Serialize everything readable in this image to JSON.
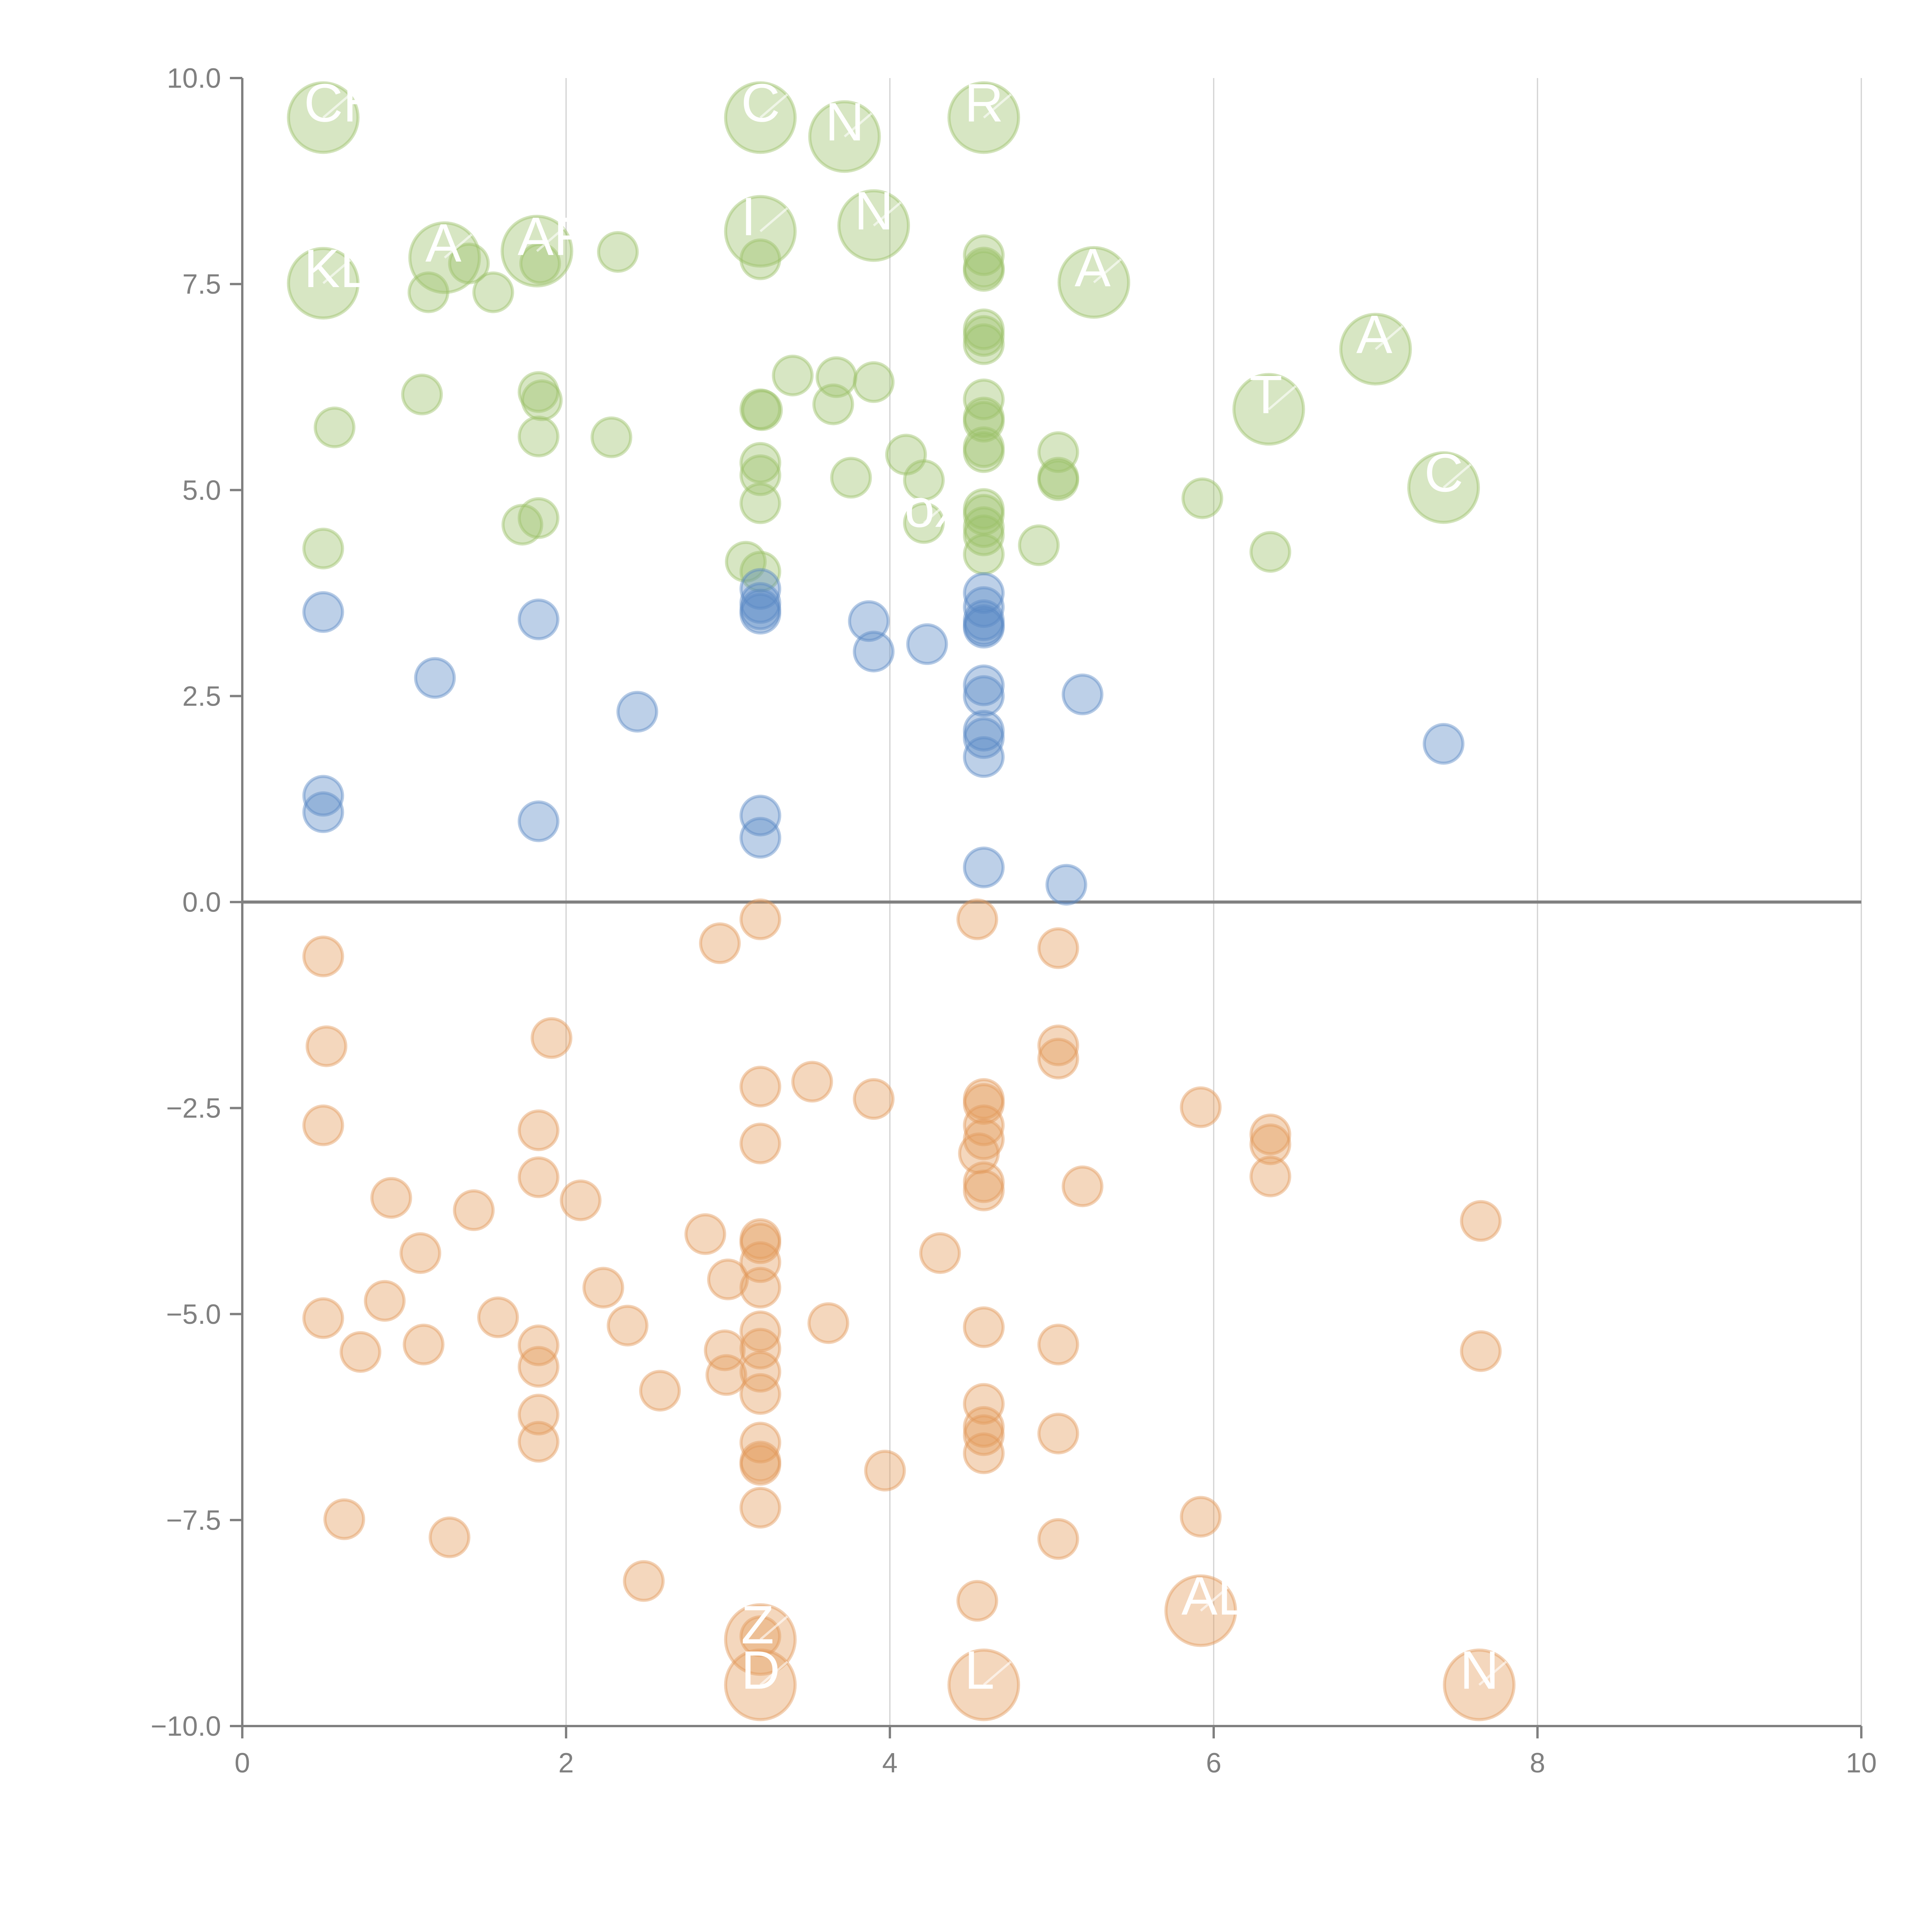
{
  "chart_data": {
    "type": "scatter",
    "title": "",
    "xlabel": "",
    "ylabel": "",
    "xlim": [
      0,
      10
    ],
    "ylim": [
      -10,
      10
    ],
    "x_ticks": [
      "0",
      "2",
      "4",
      "6",
      "8",
      "10"
    ],
    "x_tick_values": [
      0,
      2,
      4,
      6,
      8,
      10
    ],
    "y_ticks": [
      "10.0",
      "7.5",
      "5.0",
      "2.5",
      "0.0",
      "−2.5",
      "−5.0",
      "−7.5",
      "−10.0"
    ],
    "y_tick_values": [
      10,
      7.5,
      5,
      2.5,
      0,
      -2.5,
      -5,
      -7.5,
      -10
    ],
    "grid": "vertical",
    "reference_line_y": 0,
    "legend": "none",
    "series": [
      {
        "name": "green",
        "color": "#9cc069",
        "points": [
          {
            "x": 0.5,
            "y": 9.52,
            "size": "large",
            "label": "CH"
          },
          {
            "x": 3.2,
            "y": 9.52,
            "size": "large",
            "label": "C"
          },
          {
            "x": 3.72,
            "y": 9.29,
            "size": "large",
            "label": "N"
          },
          {
            "x": 4.58,
            "y": 9.52,
            "size": "large",
            "label": "R"
          },
          {
            "x": 3.2,
            "y": 8.14,
            "size": "large",
            "label": "I"
          },
          {
            "x": 3.9,
            "y": 8.21,
            "size": "large",
            "label": "N"
          },
          {
            "x": 1.25,
            "y": 7.82,
            "size": "large",
            "label": "A"
          },
          {
            "x": 1.82,
            "y": 7.9,
            "size": "large",
            "label": "AR"
          },
          {
            "x": 0.5,
            "y": 7.51,
            "size": "large",
            "label": "KLA"
          },
          {
            "x": 5.26,
            "y": 7.52,
            "size": "large",
            "label": "A"
          },
          {
            "x": 7.0,
            "y": 6.71,
            "size": "large",
            "label": "A"
          },
          {
            "x": 6.34,
            "y": 5.98,
            "size": "large",
            "label": "T"
          },
          {
            "x": 7.42,
            "y": 5.03,
            "size": "large",
            "label": "C"
          },
          {
            "x": 2.32,
            "y": 7.89,
            "size": "small"
          },
          {
            "x": 1.4,
            "y": 7.75,
            "size": "small"
          },
          {
            "x": 1.84,
            "y": 7.75,
            "size": "small"
          },
          {
            "x": 1.15,
            "y": 7.4,
            "size": "small"
          },
          {
            "x": 1.55,
            "y": 7.4,
            "size": "small"
          },
          {
            "x": 3.2,
            "y": 7.8,
            "size": "small"
          },
          {
            "x": 4.58,
            "y": 7.85,
            "size": "small"
          },
          {
            "x": 4.58,
            "y": 7.7,
            "size": "small"
          },
          {
            "x": 4.58,
            "y": 7.66,
            "size": "small"
          },
          {
            "x": 4.58,
            "y": 6.95,
            "size": "small"
          },
          {
            "x": 4.58,
            "y": 6.87,
            "size": "small"
          },
          {
            "x": 4.58,
            "y": 6.77,
            "size": "small"
          },
          {
            "x": 3.4,
            "y": 6.39,
            "size": "small"
          },
          {
            "x": 3.67,
            "y": 6.37,
            "size": "small"
          },
          {
            "x": 3.9,
            "y": 6.31,
            "size": "small"
          },
          {
            "x": 1.11,
            "y": 6.16,
            "size": "small"
          },
          {
            "x": 1.83,
            "y": 6.19,
            "size": "small"
          },
          {
            "x": 1.85,
            "y": 6.09,
            "size": "small"
          },
          {
            "x": 4.58,
            "y": 6.1,
            "size": "small"
          },
          {
            "x": 3.65,
            "y": 6.04,
            "size": "small"
          },
          {
            "x": 3.2,
            "y": 5.98,
            "size": "small"
          },
          {
            "x": 3.21,
            "y": 5.97,
            "size": "small"
          },
          {
            "x": 4.58,
            "y": 5.88,
            "size": "small"
          },
          {
            "x": 4.58,
            "y": 5.83,
            "size": "small"
          },
          {
            "x": 0.57,
            "y": 5.76,
            "size": "small"
          },
          {
            "x": 1.83,
            "y": 5.65,
            "size": "small"
          },
          {
            "x": 2.28,
            "y": 5.64,
            "size": "small"
          },
          {
            "x": 4.58,
            "y": 5.52,
            "size": "small"
          },
          {
            "x": 4.58,
            "y": 5.46,
            "size": "small"
          },
          {
            "x": 5.04,
            "y": 5.46,
            "size": "small"
          },
          {
            "x": 4.1,
            "y": 5.43,
            "size": "small"
          },
          {
            "x": 3.2,
            "y": 5.33,
            "size": "small"
          },
          {
            "x": 3.2,
            "y": 5.18,
            "size": "small"
          },
          {
            "x": 3.76,
            "y": 5.15,
            "size": "small"
          },
          {
            "x": 4.21,
            "y": 5.12,
            "size": "small"
          },
          {
            "x": 5.04,
            "y": 5.15,
            "size": "small"
          },
          {
            "x": 5.04,
            "y": 5.12,
            "size": "small"
          },
          {
            "x": 5.93,
            "y": 4.9,
            "size": "small"
          },
          {
            "x": 3.2,
            "y": 4.84,
            "size": "small"
          },
          {
            "x": 4.58,
            "y": 4.77,
            "size": "small"
          },
          {
            "x": 4.58,
            "y": 4.7,
            "size": "small"
          },
          {
            "x": 1.83,
            "y": 4.66,
            "size": "small"
          },
          {
            "x": 1.73,
            "y": 4.58,
            "size": "small"
          },
          {
            "x": 4.58,
            "y": 4.55,
            "size": "small"
          },
          {
            "x": 4.21,
            "y": 4.6,
            "size": "small",
            "label": "ox"
          },
          {
            "x": 4.58,
            "y": 4.45,
            "size": "small"
          },
          {
            "x": 4.92,
            "y": 4.33,
            "size": "small"
          },
          {
            "x": 0.5,
            "y": 4.29,
            "size": "small"
          },
          {
            "x": 6.35,
            "y": 4.25,
            "size": "small"
          },
          {
            "x": 4.58,
            "y": 4.22,
            "size": "small"
          },
          {
            "x": 3.11,
            "y": 4.13,
            "size": "small"
          },
          {
            "x": 3.2,
            "y": 4.01,
            "size": "small"
          }
        ]
      },
      {
        "name": "blue",
        "color": "#5b8ac6",
        "points": [
          {
            "x": 3.2,
            "y": 3.8,
            "size": "small"
          },
          {
            "x": 4.58,
            "y": 3.75,
            "size": "small"
          },
          {
            "x": 3.2,
            "y": 3.63,
            "size": "small"
          },
          {
            "x": 4.58,
            "y": 3.58,
            "size": "small"
          },
          {
            "x": 3.2,
            "y": 3.55,
            "size": "small"
          },
          {
            "x": 3.2,
            "y": 3.5,
            "size": "small"
          },
          {
            "x": 0.5,
            "y": 3.52,
            "size": "small"
          },
          {
            "x": 4.58,
            "y": 3.42,
            "size": "small"
          },
          {
            "x": 3.87,
            "y": 3.41,
            "size": "small"
          },
          {
            "x": 1.83,
            "y": 3.43,
            "size": "small"
          },
          {
            "x": 4.58,
            "y": 3.36,
            "size": "small"
          },
          {
            "x": 4.58,
            "y": 3.33,
            "size": "small"
          },
          {
            "x": 4.23,
            "y": 3.13,
            "size": "small"
          },
          {
            "x": 3.9,
            "y": 3.04,
            "size": "small"
          },
          {
            "x": 1.19,
            "y": 2.72,
            "size": "small"
          },
          {
            "x": 4.58,
            "y": 2.63,
            "size": "small"
          },
          {
            "x": 5.19,
            "y": 2.52,
            "size": "small"
          },
          {
            "x": 4.58,
            "y": 2.5,
            "size": "small"
          },
          {
            "x": 2.44,
            "y": 2.31,
            "size": "small"
          },
          {
            "x": 4.58,
            "y": 2.08,
            "size": "small"
          },
          {
            "x": 4.58,
            "y": 1.99,
            "size": "small"
          },
          {
            "x": 7.42,
            "y": 1.92,
            "size": "small"
          },
          {
            "x": 4.58,
            "y": 1.76,
            "size": "small"
          },
          {
            "x": 0.5,
            "y": 1.29,
            "size": "small"
          },
          {
            "x": 0.5,
            "y": 1.09,
            "size": "small"
          },
          {
            "x": 3.2,
            "y": 1.05,
            "size": "small"
          },
          {
            "x": 1.83,
            "y": 0.98,
            "size": "small"
          },
          {
            "x": 3.2,
            "y": 0.78,
            "size": "small"
          },
          {
            "x": 4.58,
            "y": 0.42,
            "size": "small"
          },
          {
            "x": 5.09,
            "y": 0.21,
            "size": "small"
          }
        ]
      },
      {
        "name": "orange",
        "color": "#e39a5b",
        "points": [
          {
            "x": 3.2,
            "y": -0.21,
            "size": "small"
          },
          {
            "x": 4.54,
            "y": -0.21,
            "size": "small"
          },
          {
            "x": 2.95,
            "y": -0.5,
            "size": "small"
          },
          {
            "x": 5.04,
            "y": -0.56,
            "size": "small"
          },
          {
            "x": 0.5,
            "y": -0.66,
            "size": "small"
          },
          {
            "x": 1.91,
            "y": -1.65,
            "size": "small"
          },
          {
            "x": 0.52,
            "y": -1.75,
            "size": "small"
          },
          {
            "x": 5.04,
            "y": -1.74,
            "size": "small"
          },
          {
            "x": 5.04,
            "y": -1.9,
            "size": "small"
          },
          {
            "x": 3.52,
            "y": -2.18,
            "size": "small"
          },
          {
            "x": 3.2,
            "y": -2.24,
            "size": "small"
          },
          {
            "x": 3.9,
            "y": -2.39,
            "size": "small"
          },
          {
            "x": 4.58,
            "y": -2.39,
            "size": "small"
          },
          {
            "x": 4.58,
            "y": -2.45,
            "size": "small"
          },
          {
            "x": 5.92,
            "y": -2.49,
            "size": "small"
          },
          {
            "x": 0.5,
            "y": -2.71,
            "size": "small"
          },
          {
            "x": 4.58,
            "y": -2.71,
            "size": "small"
          },
          {
            "x": 1.83,
            "y": -2.77,
            "size": "small"
          },
          {
            "x": 6.35,
            "y": -2.82,
            "size": "small"
          },
          {
            "x": 4.58,
            "y": -2.88,
            "size": "small"
          },
          {
            "x": 6.35,
            "y": -2.94,
            "size": "small"
          },
          {
            "x": 3.2,
            "y": -2.93,
            "size": "small"
          },
          {
            "x": 4.55,
            "y": -3.05,
            "size": "small"
          },
          {
            "x": 1.83,
            "y": -3.34,
            "size": "small"
          },
          {
            "x": 6.35,
            "y": -3.33,
            "size": "small"
          },
          {
            "x": 4.58,
            "y": -3.4,
            "size": "small"
          },
          {
            "x": 4.58,
            "y": -3.5,
            "size": "small"
          },
          {
            "x": 5.19,
            "y": -3.45,
            "size": "small"
          },
          {
            "x": 0.92,
            "y": -3.59,
            "size": "small"
          },
          {
            "x": 2.09,
            "y": -3.62,
            "size": "small"
          },
          {
            "x": 1.43,
            "y": -3.74,
            "size": "small"
          },
          {
            "x": 7.65,
            "y": -3.87,
            "size": "small"
          },
          {
            "x": 2.86,
            "y": -4.03,
            "size": "small"
          },
          {
            "x": 3.2,
            "y": -4.09,
            "size": "small"
          },
          {
            "x": 3.2,
            "y": -4.14,
            "size": "small"
          },
          {
            "x": 4.31,
            "y": -4.26,
            "size": "small"
          },
          {
            "x": 1.1,
            "y": -4.26,
            "size": "small"
          },
          {
            "x": 3.2,
            "y": -4.37,
            "size": "small"
          },
          {
            "x": 3.0,
            "y": -4.58,
            "size": "small"
          },
          {
            "x": 3.2,
            "y": -4.68,
            "size": "small"
          },
          {
            "x": 2.23,
            "y": -4.68,
            "size": "small"
          },
          {
            "x": 0.88,
            "y": -4.84,
            "size": "small"
          },
          {
            "x": 0.5,
            "y": -5.05,
            "size": "small"
          },
          {
            "x": 1.58,
            "y": -5.04,
            "size": "small"
          },
          {
            "x": 3.62,
            "y": -5.11,
            "size": "small"
          },
          {
            "x": 2.38,
            "y": -5.14,
            "size": "small"
          },
          {
            "x": 4.58,
            "y": -5.16,
            "size": "small"
          },
          {
            "x": 3.2,
            "y": -5.21,
            "size": "small"
          },
          {
            "x": 1.12,
            "y": -5.37,
            "size": "small"
          },
          {
            "x": 1.83,
            "y": -5.38,
            "size": "small"
          },
          {
            "x": 5.04,
            "y": -5.37,
            "size": "small"
          },
          {
            "x": 3.2,
            "y": -5.42,
            "size": "small"
          },
          {
            "x": 2.98,
            "y": -5.44,
            "size": "small"
          },
          {
            "x": 0.73,
            "y": -5.46,
            "size": "small"
          },
          {
            "x": 7.65,
            "y": -5.45,
            "size": "small"
          },
          {
            "x": 1.83,
            "y": -5.64,
            "size": "small"
          },
          {
            "x": 3.2,
            "y": -5.7,
            "size": "small"
          },
          {
            "x": 2.99,
            "y": -5.74,
            "size": "small"
          },
          {
            "x": 2.58,
            "y": -5.93,
            "size": "small"
          },
          {
            "x": 3.2,
            "y": -5.97,
            "size": "small"
          },
          {
            "x": 4.58,
            "y": -6.09,
            "size": "small"
          },
          {
            "x": 1.83,
            "y": -6.22,
            "size": "small"
          },
          {
            "x": 4.58,
            "y": -6.37,
            "size": "small"
          },
          {
            "x": 4.58,
            "y": -6.47,
            "size": "small"
          },
          {
            "x": 5.04,
            "y": -6.45,
            "size": "small"
          },
          {
            "x": 1.83,
            "y": -6.55,
            "size": "small"
          },
          {
            "x": 3.2,
            "y": -6.56,
            "size": "small"
          },
          {
            "x": 4.58,
            "y": -6.69,
            "size": "small"
          },
          {
            "x": 3.2,
            "y": -6.79,
            "size": "small"
          },
          {
            "x": 3.2,
            "y": -6.83,
            "size": "small"
          },
          {
            "x": 3.97,
            "y": -6.9,
            "size": "small"
          },
          {
            "x": 3.2,
            "y": -7.35,
            "size": "small"
          },
          {
            "x": 5.92,
            "y": -7.46,
            "size": "small"
          },
          {
            "x": 0.63,
            "y": -7.49,
            "size": "small"
          },
          {
            "x": 1.28,
            "y": -7.71,
            "size": "small"
          },
          {
            "x": 5.04,
            "y": -7.73,
            "size": "small"
          },
          {
            "x": 2.48,
            "y": -8.24,
            "size": "small"
          },
          {
            "x": 4.54,
            "y": -8.48,
            "size": "small"
          },
          {
            "x": 3.2,
            "y": -8.91,
            "size": "small"
          },
          {
            "x": 5.92,
            "y": -8.6,
            "size": "large",
            "label": "AL"
          },
          {
            "x": 3.2,
            "y": -8.95,
            "size": "large",
            "label": "Z"
          },
          {
            "x": 3.2,
            "y": -9.5,
            "size": "large",
            "label": "D"
          },
          {
            "x": 4.58,
            "y": -9.5,
            "size": "large",
            "label": "L"
          },
          {
            "x": 7.64,
            "y": -9.5,
            "size": "large",
            "label": "N"
          }
        ]
      }
    ]
  }
}
